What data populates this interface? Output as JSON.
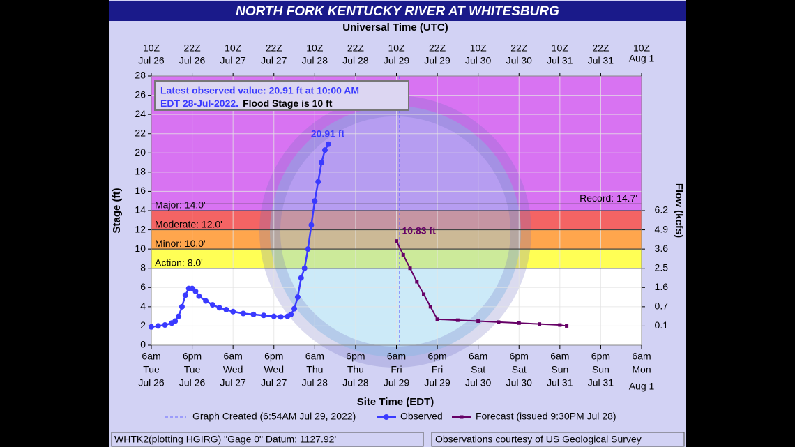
{
  "title": "NORTH FORK KENTUCKY RIVER AT WHITESBURG",
  "chart_data": {
    "type": "line",
    "top_axis_label": "Universal Time (UTC)",
    "x_label": "Site Time (EDT)",
    "y_label": "Stage (ft)",
    "y2_label": "Flow (kcfs)",
    "xlim": [
      0,
      144
    ],
    "ylim": [
      0,
      28
    ],
    "xticks": [
      {
        "value": 0,
        "label": [
          "6am",
          "Tue",
          "Jul 26"
        ]
      },
      {
        "value": 12,
        "label": [
          "6pm",
          "Tue",
          "Jul 26"
        ]
      },
      {
        "value": 24,
        "label": [
          "6am",
          "Wed",
          "Jul 27"
        ]
      },
      {
        "value": 36,
        "label": [
          "6pm",
          "Wed",
          "Jul 27"
        ]
      },
      {
        "value": 48,
        "label": [
          "6am",
          "Thu",
          "Jul 28"
        ]
      },
      {
        "value": 60,
        "label": [
          "6pm",
          "Thu",
          "Jul 28"
        ]
      },
      {
        "value": 72,
        "label": [
          "6am",
          "Fri",
          "Jul 29"
        ]
      },
      {
        "value": 84,
        "label": [
          "6pm",
          "Fri",
          "Jul 29"
        ]
      },
      {
        "value": 96,
        "label": [
          "6am",
          "Sat",
          "Jul 30"
        ]
      },
      {
        "value": 108,
        "label": [
          "6pm",
          "Sat",
          "Jul 30"
        ]
      },
      {
        "value": 120,
        "label": [
          "6am",
          "Sun",
          "Jul 31"
        ]
      },
      {
        "value": 132,
        "label": [
          "6pm",
          "Sun",
          "Jul 31"
        ]
      },
      {
        "value": 144,
        "label": [
          "6am",
          "Mon",
          "Aug 1"
        ]
      }
    ],
    "top_xticks": [
      {
        "value": 0,
        "label": [
          "10Z",
          "Jul 26"
        ]
      },
      {
        "value": 12,
        "label": [
          "22Z",
          "Jul 26"
        ]
      },
      {
        "value": 24,
        "label": [
          "10Z",
          "Jul 27"
        ]
      },
      {
        "value": 36,
        "label": [
          "22Z",
          "Jul 27"
        ]
      },
      {
        "value": 48,
        "label": [
          "10Z",
          "Jul 28"
        ]
      },
      {
        "value": 60,
        "label": [
          "22Z",
          "Jul 28"
        ]
      },
      {
        "value": 72,
        "label": [
          "10Z",
          "Jul 29"
        ]
      },
      {
        "value": 84,
        "label": [
          "22Z",
          "Jul 29"
        ]
      },
      {
        "value": 96,
        "label": [
          "10Z",
          "Jul 30"
        ]
      },
      {
        "value": 108,
        "label": [
          "22Z",
          "Jul 30"
        ]
      },
      {
        "value": 120,
        "label": [
          "10Z",
          "Jul 31"
        ]
      },
      {
        "value": 132,
        "label": [
          "22Z",
          "Jul 31"
        ]
      },
      {
        "value": 144,
        "label": [
          "10Z",
          "Aug 1"
        ]
      }
    ],
    "yticks": [
      0,
      2,
      4,
      6,
      8,
      10,
      12,
      14,
      16,
      18,
      20,
      22,
      24,
      26,
      28
    ],
    "y2ticks": [
      {
        "stage": 14,
        "value": 6.2
      },
      {
        "stage": 12,
        "value": 4.9
      },
      {
        "stage": 10,
        "value": 3.6
      },
      {
        "stage": 8,
        "value": 2.5
      },
      {
        "stage": 6,
        "value": 1.6
      },
      {
        "stage": 4,
        "value": 0.7
      },
      {
        "stage": 2,
        "value": 0.1
      }
    ],
    "grid": true,
    "flood_categories": [
      {
        "value": 8,
        "label": "Action: 8.0'",
        "color": "#ffff55"
      },
      {
        "value": 10,
        "label": "Minor: 10.0'",
        "color": "#ffa64d"
      },
      {
        "value": 12,
        "label": "Moderate: 12.0'",
        "color": "#f46464"
      },
      {
        "value": 14,
        "label": "Major: 14.0'",
        "color": "#d873f2"
      }
    ],
    "record": {
      "value": 14.7,
      "label": "Record: 14.7'"
    },
    "series": [
      {
        "name": "Observed",
        "color": "#3a3aff",
        "x": [
          0,
          2,
          4,
          6,
          7,
          8,
          9,
          10,
          11,
          12,
          13,
          14,
          16,
          18,
          20,
          22,
          24,
          27,
          30,
          33,
          36,
          38,
          40,
          41,
          42,
          43,
          44,
          45,
          46,
          47,
          48,
          49,
          50,
          51,
          52
        ],
        "values": [
          1.9,
          2.0,
          2.1,
          2.3,
          2.5,
          3.0,
          4.0,
          5.2,
          5.9,
          5.9,
          5.6,
          5.1,
          4.6,
          4.2,
          3.9,
          3.7,
          3.5,
          3.3,
          3.2,
          3.1,
          3.0,
          2.95,
          3.0,
          3.2,
          3.8,
          5.0,
          7.0,
          8.0,
          10.0,
          12.5,
          15.0,
          17.0,
          19.0,
          20.3,
          20.91
        ]
      },
      {
        "name": "Forecast (issued 9:30PM Jul 28)",
        "color": "#660066",
        "x": [
          72,
          74,
          76,
          78,
          80,
          82,
          84,
          90,
          96,
          102,
          108,
          114,
          120,
          122
        ],
        "values": [
          10.83,
          9.4,
          8.0,
          6.6,
          5.3,
          4.0,
          2.7,
          2.6,
          2.5,
          2.4,
          2.3,
          2.2,
          2.1,
          2.0
        ]
      }
    ],
    "created_line": {
      "name": "Graph Created (6:54AM Jul 29, 2022)",
      "x": 72.9,
      "color": "#6666ff"
    },
    "annotations": [
      {
        "x": 52,
        "value": 20.91,
        "label": "20.91 ft",
        "color": "#3a3aff"
      },
      {
        "x": 72,
        "value": 10.83,
        "label": "10.83 ft",
        "color": "#660066"
      }
    ],
    "info_box": {
      "line1": "Latest observed value: 20.91 ft at 10:00 AM",
      "line2a": "EDT 28-Jul-2022.",
      "line2b": "Flood Stage is 10 ft"
    }
  },
  "footer": {
    "left": "WHTK2(plotting HGIRG) \"Gage 0\" Datum: 1127.92'",
    "right": "Observations courtesy of US Geological Survey"
  }
}
